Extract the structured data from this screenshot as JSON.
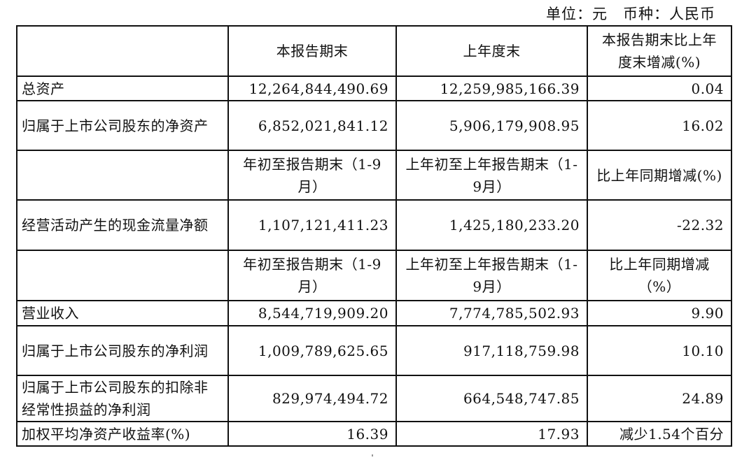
{
  "unit_note": "单位：元　币种：人民币",
  "header": [
    "",
    "本报告期末",
    "上年度末",
    "本报告期末比上年度末增减(%)"
  ],
  "rows1": [
    {
      "label": "总资产",
      "current": "12,264,844,490.69",
      "previous": "12,259,985,166.39",
      "change": "0.04"
    },
    {
      "label": "归属于上市公司股东的净资产",
      "current": "6,852,021,841.12",
      "previous": "5,906,179,908.95",
      "change": "16.02"
    }
  ],
  "header2": [
    "",
    "年初至报告期末（1-9月）",
    "上年初至上年报告期末（1-9月）",
    "比上年同期增减(%)"
  ],
  "rows2": [
    {
      "label": "经营活动产生的现金流量净额",
      "current": "1,107,121,411.23",
      "previous": "1,425,180,233.20",
      "change": "-22.32"
    }
  ],
  "header3": [
    "",
    "年初至报告期末（1-9月）",
    "上年初至上年报告期末（1-9月）",
    "比上年同期增减（%）"
  ],
  "rows3": [
    {
      "label": "营业收入",
      "current": "8,544,719,909.20",
      "previous": "7,774,785,502.93",
      "change": "9.90"
    },
    {
      "label": "归属于上市公司股东的净利润",
      "current": "1,009,789,625.65",
      "previous": "917,118,759.98",
      "change": "10.10"
    },
    {
      "label": "归属于上市公司股东的扣除非经常性损益的净利润",
      "current": "829,974,494.72",
      "previous": "664,548,747.85",
      "change": "24.89"
    },
    {
      "label": "加权平均净资产收益率(%)",
      "current": "16.39",
      "previous": "17.93",
      "change": "减少1.54个百分"
    }
  ]
}
